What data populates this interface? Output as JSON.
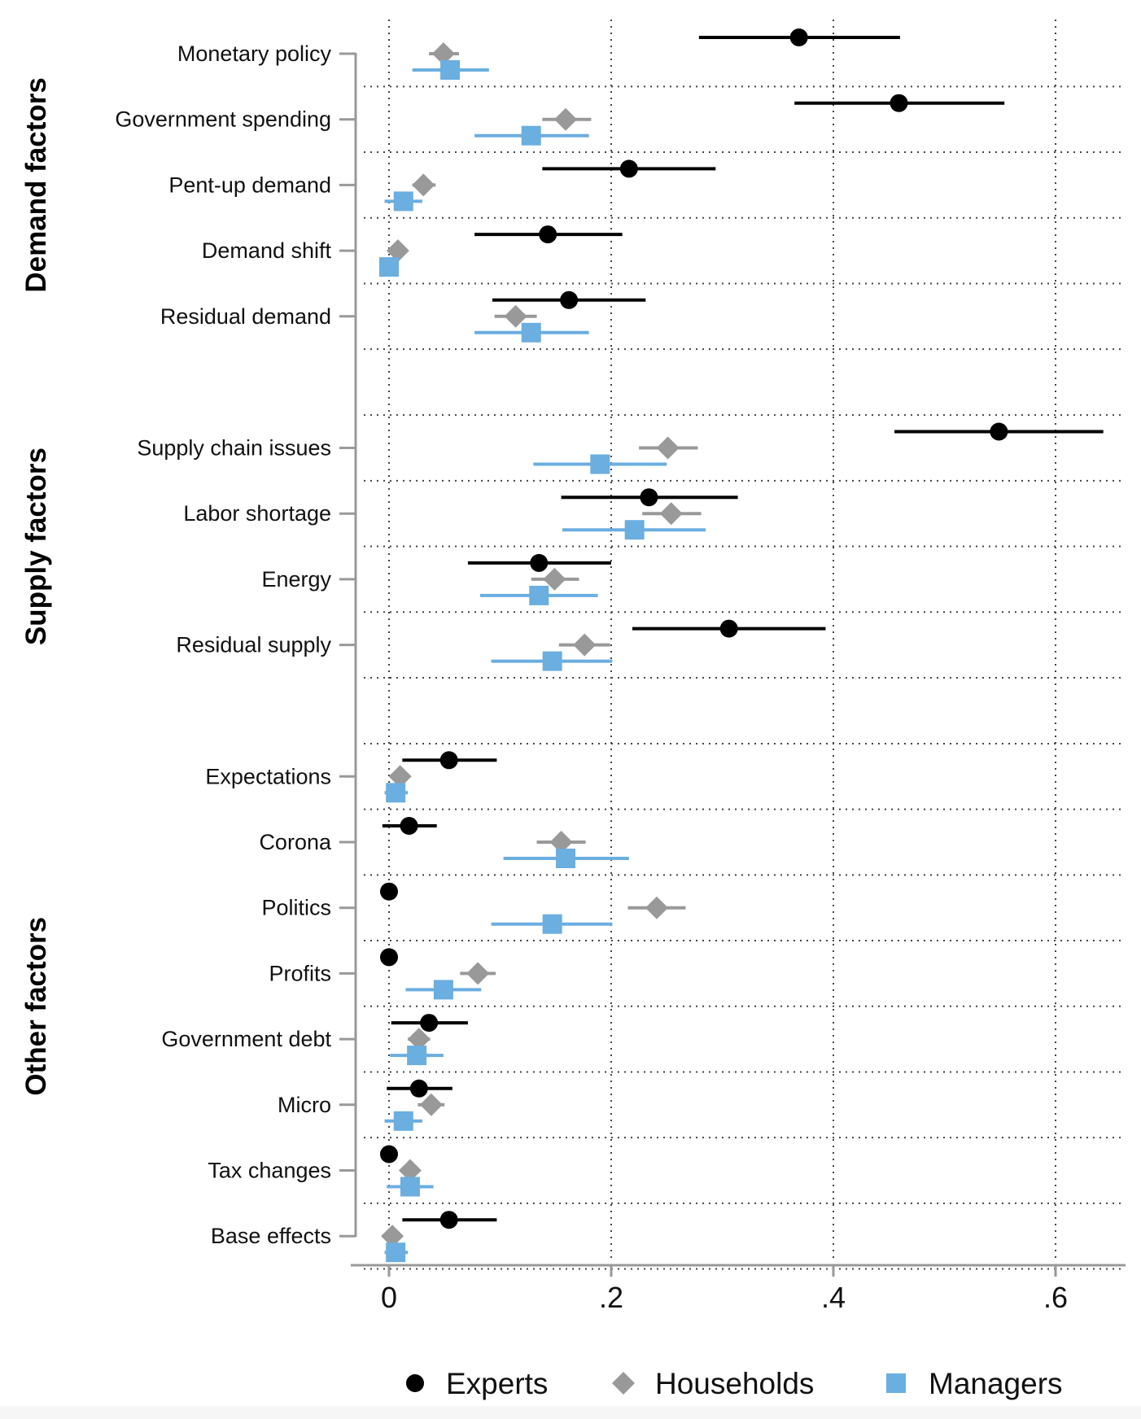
{
  "chart_data": {
    "type": "scatter",
    "subtype": "coefficient-plot-with-confidence-intervals",
    "orientation": "horizontal",
    "title": "",
    "xlabel": "",
    "ylabel": "",
    "xlim": [
      -0.027,
      0.66
    ],
    "x_ticks": [
      0,
      0.2,
      0.4,
      0.6
    ],
    "x_tick_labels": [
      "0",
      ".2",
      ".4",
      ".6"
    ],
    "vertical_gridlines_at": [
      0,
      0.2,
      0.4,
      0.6
    ],
    "grid": "dotted",
    "legend_position": "bottom",
    "series": [
      {
        "name": "Experts",
        "marker": "circle",
        "color": "#000000"
      },
      {
        "name": "Households",
        "marker": "diamond",
        "color": "#999999"
      },
      {
        "name": "Managers",
        "marker": "square",
        "color": "#6baee0"
      }
    ],
    "groups": [
      {
        "name": "Demand factors",
        "categories": [
          {
            "label": "Monetary policy",
            "values": [
              {
                "series": "Experts",
                "value": 0.369,
                "ci": [
                  0.279,
                  0.46
                ]
              },
              {
                "series": "Households",
                "value": 0.049,
                "ci": [
                  0.036,
                  0.063
                ]
              },
              {
                "series": "Managers",
                "value": 0.055,
                "ci": [
                  0.021,
                  0.09
                ]
              }
            ]
          },
          {
            "label": "Government spending",
            "values": [
              {
                "series": "Experts",
                "value": 0.459,
                "ci": [
                  0.365,
                  0.554
                ]
              },
              {
                "series": "Households",
                "value": 0.159,
                "ci": [
                  0.138,
                  0.182
                ]
              },
              {
                "series": "Managers",
                "value": 0.128,
                "ci": [
                  0.077,
                  0.18
                ]
              }
            ]
          },
          {
            "label": "Pent-up demand",
            "values": [
              {
                "series": "Experts",
                "value": 0.216,
                "ci": [
                  0.138,
                  0.294
                ]
              },
              {
                "series": "Households",
                "value": 0.031,
                "ci": [
                  0.021,
                  0.042
                ]
              },
              {
                "series": "Managers",
                "value": 0.013,
                "ci": [
                  -0.004,
                  0.03
                ]
              }
            ]
          },
          {
            "label": "Demand shift",
            "values": [
              {
                "series": "Experts",
                "value": 0.143,
                "ci": [
                  0.077,
                  0.21
                ]
              },
              {
                "series": "Households",
                "value": 0.008,
                "ci": [
                  0.003,
                  0.013
                ]
              },
              {
                "series": "Managers",
                "value": 0.0,
                "ci": [
                  0.0,
                  0.0
                ]
              }
            ]
          },
          {
            "label": "Residual demand",
            "values": [
              {
                "series": "Experts",
                "value": 0.162,
                "ci": [
                  0.093,
                  0.231
                ]
              },
              {
                "series": "Households",
                "value": 0.114,
                "ci": [
                  0.095,
                  0.133
                ]
              },
              {
                "series": "Managers",
                "value": 0.128,
                "ci": [
                  0.077,
                  0.18
                ]
              }
            ]
          }
        ]
      },
      {
        "name": "Supply factors",
        "categories": [
          {
            "label": "Supply chain issues",
            "values": [
              {
                "series": "Experts",
                "value": 0.549,
                "ci": [
                  0.455,
                  0.643
                ]
              },
              {
                "series": "Households",
                "value": 0.251,
                "ci": [
                  0.225,
                  0.278
                ]
              },
              {
                "series": "Managers",
                "value": 0.19,
                "ci": [
                  0.13,
                  0.25
                ]
              }
            ]
          },
          {
            "label": "Labor shortage",
            "values": [
              {
                "series": "Experts",
                "value": 0.234,
                "ci": [
                  0.155,
                  0.314
                ]
              },
              {
                "series": "Households",
                "value": 0.254,
                "ci": [
                  0.228,
                  0.281
                ]
              },
              {
                "series": "Managers",
                "value": 0.221,
                "ci": [
                  0.156,
                  0.285
                ]
              }
            ]
          },
          {
            "label": "Energy",
            "values": [
              {
                "series": "Experts",
                "value": 0.135,
                "ci": [
                  0.071,
                  0.2
                ]
              },
              {
                "series": "Households",
                "value": 0.149,
                "ci": [
                  0.128,
                  0.171
                ]
              },
              {
                "series": "Managers",
                "value": 0.135,
                "ci": [
                  0.082,
                  0.188
                ]
              }
            ]
          },
          {
            "label": "Residual supply",
            "values": [
              {
                "series": "Experts",
                "value": 0.306,
                "ci": [
                  0.219,
                  0.393
                ]
              },
              {
                "series": "Households",
                "value": 0.176,
                "ci": [
                  0.153,
                  0.199
                ]
              },
              {
                "series": "Managers",
                "value": 0.147,
                "ci": [
                  0.092,
                  0.201
                ]
              }
            ]
          }
        ]
      },
      {
        "name": "Other factors",
        "categories": [
          {
            "label": "Expectations",
            "values": [
              {
                "series": "Experts",
                "value": 0.054,
                "ci": [
                  0.012,
                  0.097
                ]
              },
              {
                "series": "Households",
                "value": 0.01,
                "ci": [
                  0.004,
                  0.016
                ]
              },
              {
                "series": "Managers",
                "value": 0.006,
                "ci": [
                  -0.004,
                  0.017
                ]
              }
            ]
          },
          {
            "label": "Corona",
            "values": [
              {
                "series": "Experts",
                "value": 0.018,
                "ci": [
                  -0.006,
                  0.043
                ]
              },
              {
                "series": "Households",
                "value": 0.155,
                "ci": [
                  0.133,
                  0.177
                ]
              },
              {
                "series": "Managers",
                "value": 0.159,
                "ci": [
                  0.103,
                  0.216
                ]
              }
            ]
          },
          {
            "label": "Politics",
            "values": [
              {
                "series": "Experts",
                "value": 0.0,
                "ci": [
                  0.0,
                  0.0
                ]
              },
              {
                "series": "Households",
                "value": 0.241,
                "ci": [
                  0.215,
                  0.267
                ]
              },
              {
                "series": "Managers",
                "value": 0.147,
                "ci": [
                  0.092,
                  0.201
                ]
              }
            ]
          },
          {
            "label": "Profits",
            "values": [
              {
                "series": "Experts",
                "value": 0.0,
                "ci": [
                  0.0,
                  0.0
                ]
              },
              {
                "series": "Households",
                "value": 0.08,
                "ci": [
                  0.064,
                  0.096
                ]
              },
              {
                "series": "Managers",
                "value": 0.049,
                "ci": [
                  0.015,
                  0.083
                ]
              }
            ]
          },
          {
            "label": "Government debt",
            "values": [
              {
                "series": "Experts",
                "value": 0.036,
                "ci": [
                  0.002,
                  0.071
                ]
              },
              {
                "series": "Households",
                "value": 0.027,
                "ci": [
                  0.017,
                  0.037
                ]
              },
              {
                "series": "Managers",
                "value": 0.025,
                "ci": [
                  0.001,
                  0.049
                ]
              }
            ]
          },
          {
            "label": "Micro",
            "values": [
              {
                "series": "Experts",
                "value": 0.027,
                "ci": [
                  -0.002,
                  0.057
                ]
              },
              {
                "series": "Households",
                "value": 0.038,
                "ci": [
                  0.026,
                  0.05
                ]
              },
              {
                "series": "Managers",
                "value": 0.013,
                "ci": [
                  -0.004,
                  0.03
                ]
              }
            ]
          },
          {
            "label": "Tax changes",
            "values": [
              {
                "series": "Experts",
                "value": 0.0,
                "ci": [
                  0.0,
                  0.0
                ]
              },
              {
                "series": "Households",
                "value": 0.019,
                "ci": [
                  0.011,
                  0.027
                ]
              },
              {
                "series": "Managers",
                "value": 0.019,
                "ci": [
                  -0.002,
                  0.04
                ]
              }
            ]
          },
          {
            "label": "Base effects",
            "values": [
              {
                "series": "Experts",
                "value": 0.054,
                "ci": [
                  0.012,
                  0.097
                ]
              },
              {
                "series": "Households",
                "value": 0.003,
                "ci": [
                  0.0,
                  0.006
                ]
              },
              {
                "series": "Managers",
                "value": 0.006,
                "ci": [
                  -0.004,
                  0.017
                ]
              }
            ]
          }
        ]
      }
    ]
  }
}
